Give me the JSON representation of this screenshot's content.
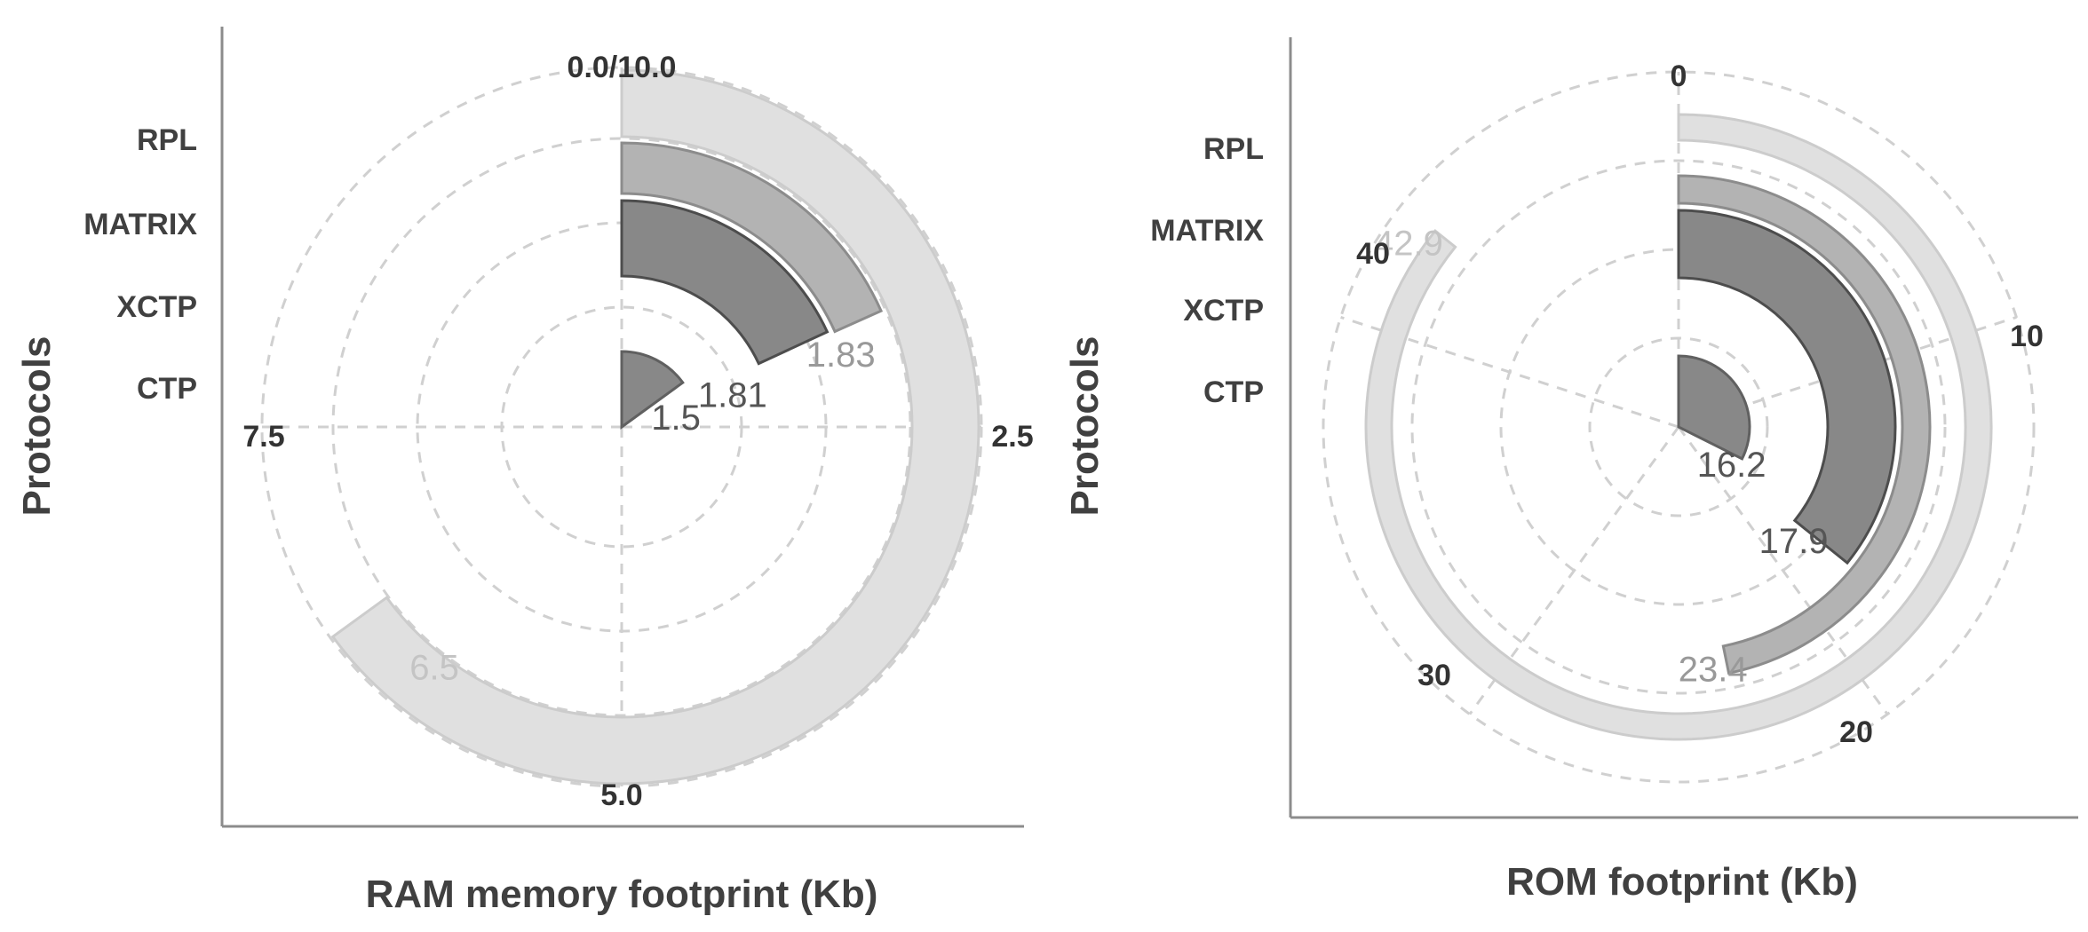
{
  "chart_data": [
    {
      "type": "radial-bar",
      "xlabel": "RAM memory footprint (Kb)",
      "ylabel": "Protocols",
      "full_circle": 10.0,
      "theta_ticks": [
        "0.0/10.0",
        "2.5",
        "5.0",
        "7.5"
      ],
      "grid": true,
      "categories": [
        "RPL",
        "MATRIX",
        "XCTP",
        "CTP"
      ],
      "values": [
        6.5,
        1.83,
        1.81,
        1.5
      ],
      "value_labels": [
        "6.5",
        "1.83",
        "1.81",
        "1.5"
      ],
      "colors": [
        "#e0e0e0",
        "#b3b3b3",
        "#888888",
        "#888888"
      ],
      "edge_colors": [
        "#cccccc",
        "#8c8c8c",
        "#4d4d4d",
        "#606060"
      ],
      "label_colors": [
        "#c4c4c4",
        "#999999",
        "#555555",
        "#555555"
      ]
    },
    {
      "type": "radial-bar",
      "xlabel": "ROM footprint (Kb)",
      "ylabel": "Protocols",
      "full_circle": 50,
      "theta_ticks": [
        "0",
        "10",
        "20",
        "30",
        "40"
      ],
      "grid": true,
      "categories": [
        "RPL",
        "MATRIX",
        "XCTP",
        "CTP"
      ],
      "values": [
        42.9,
        23.4,
        17.9,
        16.2
      ],
      "value_labels": [
        "42.9",
        "23.4",
        "17.9",
        "16.2"
      ],
      "colors": [
        "#e0e0e0",
        "#b3b3b3",
        "#888888",
        "#888888"
      ],
      "edge_colors": [
        "#cccccc",
        "#8c8c8c",
        "#4d4d4d",
        "#606060"
      ],
      "label_colors": [
        "#c4c4c4",
        "#999999",
        "#555555",
        "#555555"
      ]
    }
  ]
}
